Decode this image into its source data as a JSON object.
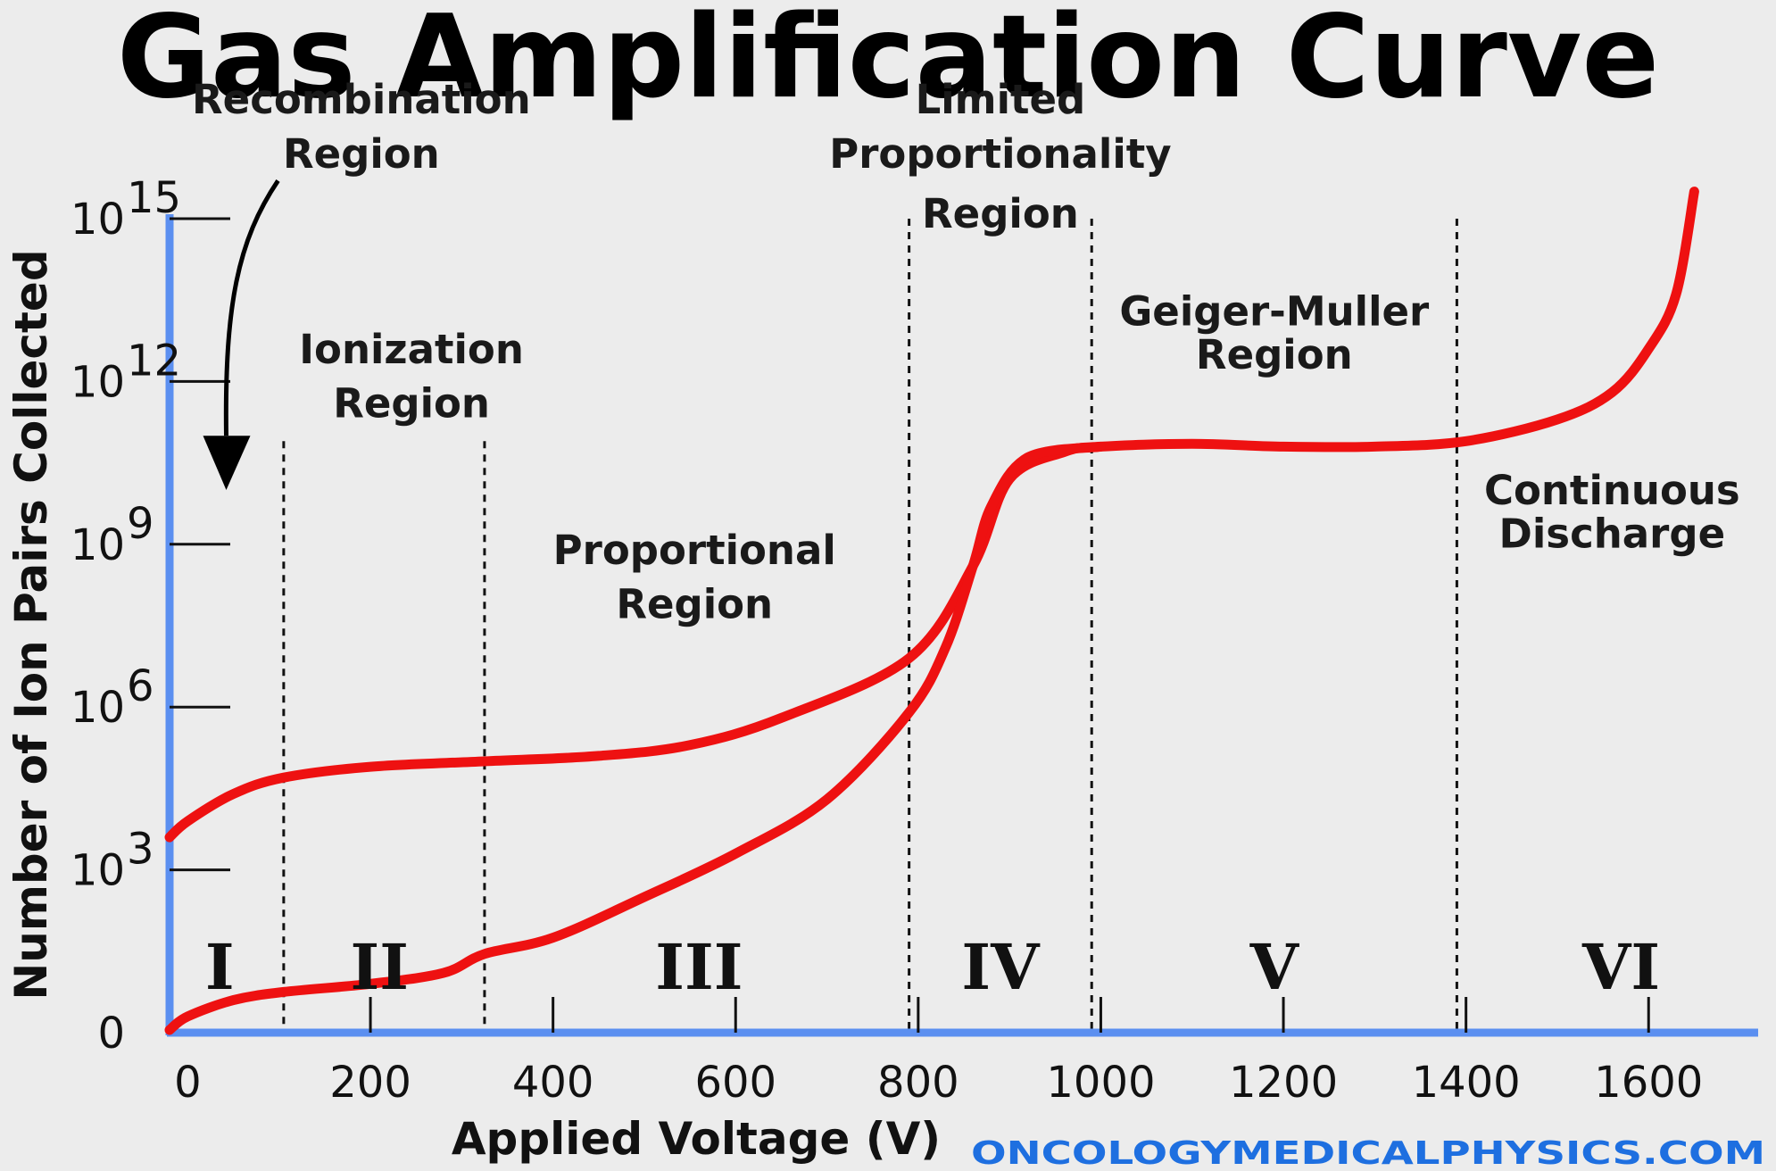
{
  "chart_data": {
    "type": "line",
    "title": "Gas Amplification Curve",
    "xlabel": "Applied Voltage (V)",
    "ylabel": "Number of Ion Pairs Collected",
    "xlim": [
      -20,
      1720
    ],
    "ylim": [
      0,
      15
    ],
    "y_scale": "log",
    "x_ticks": [
      0,
      200,
      400,
      600,
      800,
      1000,
      1200,
      1400,
      1600
    ],
    "x_tick_labels": [
      "0",
      "200",
      "400",
      "600",
      "800",
      "1000",
      "1200",
      "1400",
      "1600"
    ],
    "y_ticks": [
      {
        "exp": 0,
        "label": "0",
        "base": "",
        "sup": ""
      },
      {
        "exp": 3,
        "label": "10^3",
        "base": "10",
        "sup": "3"
      },
      {
        "exp": 6,
        "label": "10^6",
        "base": "10",
        "sup": "6"
      },
      {
        "exp": 9,
        "label": "10^9",
        "base": "10",
        "sup": "9"
      },
      {
        "exp": 12,
        "label": "10^12",
        "base": "10",
        "sup": "12"
      },
      {
        "exp": 15,
        "label": "10^15",
        "base": "10",
        "sup": "15"
      }
    ],
    "boundaries": [
      105,
      325,
      790,
      990,
      1390
    ],
    "boundary_top_exp": [
      10.9,
      10.9,
      15,
      15,
      15
    ],
    "regions": [
      {
        "numeral": "I",
        "x": 35
      },
      {
        "numeral": "II",
        "x": 210
      },
      {
        "numeral": "III",
        "x": 560
      },
      {
        "numeral": "IV",
        "x": 890
      },
      {
        "numeral": "V",
        "x": 1190
      },
      {
        "numeral": "VI",
        "x": 1570
      }
    ],
    "region_labels": [
      {
        "lines": [
          "Recombination",
          "Region"
        ],
        "x": 190,
        "exp": [
          17.2,
          16.2
        ]
      },
      {
        "lines": [
          "Ionization",
          "Region"
        ],
        "x": 245,
        "exp": [
          12.6,
          11.6
        ]
      },
      {
        "lines": [
          "Proportional",
          "Region"
        ],
        "x": 555,
        "exp": [
          8.9,
          7.9
        ]
      },
      {
        "lines": [
          "Limited",
          "Proportionality",
          "Region"
        ],
        "x": 890,
        "exp": [
          17.2,
          16.2,
          15.1
        ]
      },
      {
        "lines": [
          "Geiger-Muller",
          "Region"
        ],
        "x": 1190,
        "exp": [
          13.3,
          12.5
        ]
      },
      {
        "lines": [
          "Continuous",
          "Discharge"
        ],
        "x": 1560,
        "exp": [
          10.0,
          9.2
        ]
      }
    ],
    "series": [
      {
        "color": "#ee1111",
        "x": [
          -20,
          0,
          50,
          105,
          200,
          325,
          450,
          550,
          650,
          790,
          860,
          900,
          960,
          1000,
          1100,
          1200,
          1300,
          1400,
          1500,
          1560,
          1600,
          1630,
          1650
        ],
        "y": [
          3.6,
          3.9,
          4.4,
          4.7,
          4.9,
          5.0,
          5.1,
          5.3,
          5.8,
          6.9,
          8.6,
          10.2,
          10.7,
          10.8,
          10.85,
          10.8,
          10.8,
          10.9,
          11.3,
          11.8,
          12.6,
          13.6,
          15.5
        ]
      },
      {
        "color": "#ee1111",
        "x": [
          -20,
          0,
          50,
          105,
          200,
          280,
          325,
          400,
          500,
          600,
          700,
          790,
          830,
          860,
          880,
          920,
          1000
        ],
        "y": [
          0.05,
          0.3,
          0.6,
          0.75,
          0.9,
          1.1,
          1.45,
          1.75,
          2.5,
          3.3,
          4.3,
          5.9,
          7.1,
          8.6,
          9.7,
          10.6,
          10.8
        ]
      }
    ],
    "colors": {
      "axis": "#5b8ff0",
      "curve": "#ee1111",
      "watermark": "#1e6fe0"
    }
  },
  "watermark": "ONCOLOGYMEDICALPHYSICS.COM"
}
